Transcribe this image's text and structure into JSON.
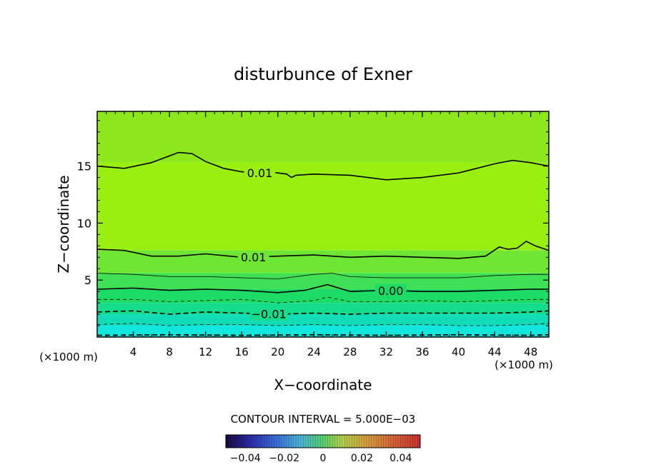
{
  "chart_data": {
    "type": "contour",
    "title": "disturbunce of Exner",
    "xlabel": "X−coordinate",
    "ylabel": "Z−coordinate",
    "x_unit_left": "(×1000 m)",
    "x_unit_right": "(×1000 m)",
    "xlim": [
      0,
      50
    ],
    "ylim": [
      0,
      19.8
    ],
    "x_ticks": [
      4,
      8,
      12,
      16,
      20,
      24,
      28,
      32,
      36,
      40,
      44,
      48
    ],
    "y_ticks": [
      5,
      10,
      15
    ],
    "contour_interval_text": "CONTOUR INTERVAL = 5.000E−03",
    "colorbar": {
      "range": [
        -0.05,
        0.05
      ],
      "ticks": [
        {
          "value": -0.04,
          "label": "−0.04"
        },
        {
          "value": -0.02,
          "label": "−0.02"
        },
        {
          "value": 0,
          "label": "0"
        },
        {
          "value": 0.02,
          "label": "0.02"
        },
        {
          "value": 0.04,
          "label": "0.04"
        }
      ]
    },
    "color_bands": [
      {
        "z_top": 19.8,
        "z_bottom": 15.3,
        "color": "#8ce81a"
      },
      {
        "z_top": 15.3,
        "z_bottom": 7.6,
        "color": "#99ef10"
      },
      {
        "z_top": 7.6,
        "z_bottom": 5.6,
        "color": "#6fe633"
      },
      {
        "z_top": 5.6,
        "z_bottom": 4.2,
        "color": "#3fe055"
      },
      {
        "z_top": 4.2,
        "z_bottom": 3.0,
        "color": "#1cdc66"
      },
      {
        "z_top": 3.0,
        "z_bottom": 2.0,
        "color": "#14dc8a"
      },
      {
        "z_top": 2.0,
        "z_bottom": 1.0,
        "color": "#10dcb5"
      },
      {
        "z_top": 1.0,
        "z_bottom": 0.0,
        "color": "#12e6dc"
      }
    ],
    "contours": [
      {
        "value": 0.01,
        "label": "0.01",
        "label_x": 18.0,
        "style": "solid",
        "width": 1.6,
        "points": [
          [
            0,
            15.0
          ],
          [
            3,
            14.8
          ],
          [
            6,
            15.3
          ],
          [
            9,
            16.2
          ],
          [
            10.5,
            16.1
          ],
          [
            12,
            15.4
          ],
          [
            14,
            14.8
          ],
          [
            16,
            14.5
          ],
          [
            18,
            14.4
          ],
          [
            19,
            14.5
          ],
          [
            20,
            14.4
          ],
          [
            21,
            14.3
          ],
          [
            21.5,
            14.0
          ],
          [
            22,
            14.2
          ],
          [
            24,
            14.3
          ],
          [
            28,
            14.2
          ],
          [
            32,
            13.8
          ],
          [
            36,
            14.0
          ],
          [
            40,
            14.4
          ],
          [
            42,
            14.8
          ],
          [
            44,
            15.2
          ],
          [
            46,
            15.5
          ],
          [
            48,
            15.3
          ],
          [
            50,
            15.0
          ]
        ]
      },
      {
        "value": 0.01,
        "label": "0.01",
        "label_x": 17.3,
        "style": "solid",
        "width": 1.6,
        "points": [
          [
            0,
            7.7
          ],
          [
            3,
            7.6
          ],
          [
            6,
            7.1
          ],
          [
            9,
            7.1
          ],
          [
            12,
            7.3
          ],
          [
            16,
            7.0
          ],
          [
            20,
            7.1
          ],
          [
            24,
            7.2
          ],
          [
            28,
            7.0
          ],
          [
            32,
            7.1
          ],
          [
            36,
            7.0
          ],
          [
            40,
            6.9
          ],
          [
            43,
            7.1
          ],
          [
            44.5,
            7.9
          ],
          [
            45.5,
            7.7
          ],
          [
            46.5,
            7.8
          ],
          [
            47.5,
            8.4
          ],
          [
            48.5,
            8.0
          ],
          [
            50,
            7.6
          ]
        ]
      },
      {
        "value": 0.005,
        "style": "solid",
        "width": 0.8,
        "points": [
          [
            0,
            5.6
          ],
          [
            4,
            5.5
          ],
          [
            8,
            5.3
          ],
          [
            12,
            5.3
          ],
          [
            16,
            5.2
          ],
          [
            20,
            5.1
          ],
          [
            24,
            5.5
          ],
          [
            26,
            5.6
          ],
          [
            28,
            5.3
          ],
          [
            32,
            5.2
          ],
          [
            36,
            5.2
          ],
          [
            40,
            5.2
          ],
          [
            44,
            5.4
          ],
          [
            48,
            5.5
          ],
          [
            50,
            5.5
          ]
        ]
      },
      {
        "value": 0.0,
        "label": "0.00",
        "label_x": 32.5,
        "style": "solid",
        "width": 1.6,
        "points": [
          [
            0,
            4.2
          ],
          [
            4,
            4.3
          ],
          [
            8,
            4.1
          ],
          [
            12,
            4.2
          ],
          [
            16,
            4.1
          ],
          [
            20,
            3.9
          ],
          [
            23,
            4.1
          ],
          [
            25.5,
            4.6
          ],
          [
            28,
            4.0
          ],
          [
            32,
            4.1
          ],
          [
            36,
            4.0
          ],
          [
            40,
            4.0
          ],
          [
            44,
            4.1
          ],
          [
            48,
            4.2
          ],
          [
            50,
            4.2
          ]
        ]
      },
      {
        "value": -0.005,
        "style": "dashed",
        "width": 0.8,
        "points": [
          [
            0,
            3.3
          ],
          [
            4,
            3.3
          ],
          [
            8,
            3.1
          ],
          [
            12,
            3.2
          ],
          [
            16,
            3.3
          ],
          [
            20,
            3.0
          ],
          [
            24,
            3.2
          ],
          [
            25.5,
            3.5
          ],
          [
            28,
            3.1
          ],
          [
            32,
            3.1
          ],
          [
            36,
            3.2
          ],
          [
            40,
            3.1
          ],
          [
            44,
            3.2
          ],
          [
            48,
            3.3
          ],
          [
            50,
            3.3
          ]
        ]
      },
      {
        "value": -0.01,
        "label": "−0.01",
        "label_x": 19.0,
        "style": "dashed",
        "width": 1.6,
        "points": [
          [
            0,
            2.2
          ],
          [
            4,
            2.3
          ],
          [
            8,
            2.0
          ],
          [
            12,
            2.2
          ],
          [
            16,
            2.1
          ],
          [
            20,
            2.0
          ],
          [
            24,
            2.1
          ],
          [
            28,
            2.0
          ],
          [
            32,
            2.1
          ],
          [
            36,
            2.1
          ],
          [
            40,
            2.1
          ],
          [
            44,
            2.1
          ],
          [
            48,
            2.2
          ],
          [
            50,
            2.3
          ]
        ]
      },
      {
        "value": -0.015,
        "style": "dashed",
        "width": 0.8,
        "points": [
          [
            0,
            1.1
          ],
          [
            4,
            1.2
          ],
          [
            8,
            1.0
          ],
          [
            12,
            1.1
          ],
          [
            16,
            1.1
          ],
          [
            20,
            1.0
          ],
          [
            24,
            1.1
          ],
          [
            28,
            1.0
          ],
          [
            32,
            1.1
          ],
          [
            36,
            1.1
          ],
          [
            40,
            1.0
          ],
          [
            44,
            1.0
          ],
          [
            48,
            1.1
          ],
          [
            50,
            1.2
          ]
        ]
      },
      {
        "value": -0.02,
        "style": "dashed",
        "width": 1.6,
        "points": [
          [
            0,
            0.15
          ],
          [
            8,
            0.2
          ],
          [
            16,
            0.15
          ],
          [
            24,
            0.2
          ],
          [
            32,
            0.15
          ],
          [
            40,
            0.2
          ],
          [
            48,
            0.15
          ],
          [
            50,
            0.2
          ]
        ]
      }
    ]
  }
}
